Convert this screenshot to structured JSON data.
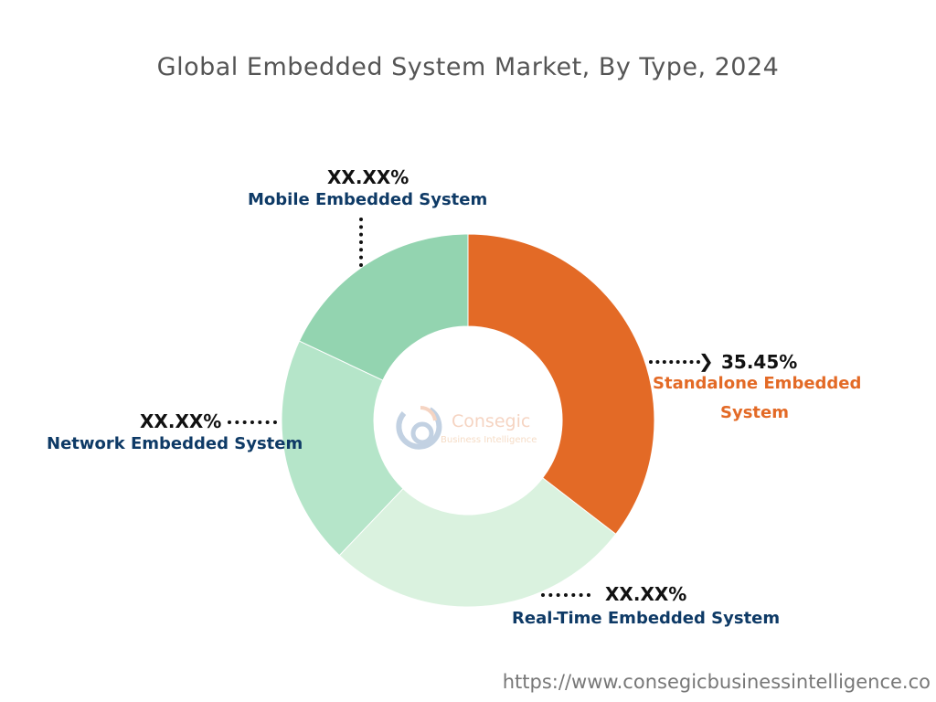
{
  "chart_data": {
    "type": "pie",
    "subtype": "donut",
    "title": "Global Embedded System Market, By Type, 2024",
    "slices": [
      {
        "name": "Standalone Embedded System",
        "label": "35.45%",
        "value": 35.45,
        "color": "#E36A26"
      },
      {
        "name": "Real-Time Embedded System",
        "label": "XX.XX%",
        "value": 26.7,
        "color": "#DAF2DF"
      },
      {
        "name": "Network Embedded System",
        "label": "XX.XX%",
        "value": 19.9,
        "color": "#B5E5C9"
      },
      {
        "name": "Mobile Embedded System",
        "label": "XX.XX%",
        "value": 18.0,
        "color": "#93D4B0"
      }
    ],
    "start_angle": "top, clockwise"
  },
  "labels": {
    "standalone_line2": "Standalone Embedded",
    "standalone_line3": "System"
  },
  "logo": {
    "name": "Consegic",
    "tagline": "Business Intelligence"
  },
  "footer_url": "https://www.consegicbusinessintelligence.co"
}
